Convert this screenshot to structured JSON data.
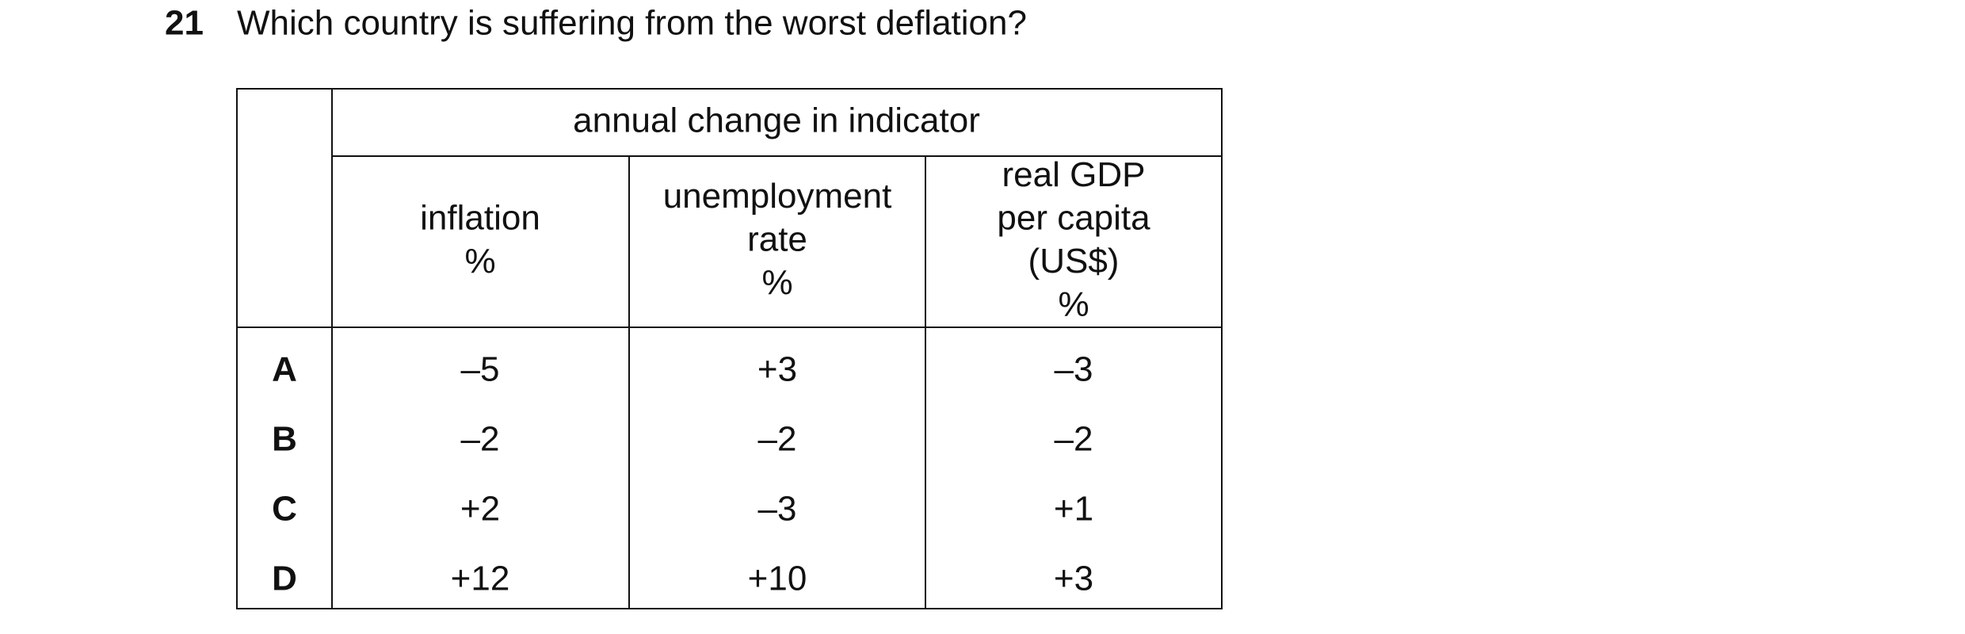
{
  "question": {
    "number": "21",
    "text": "Which country is suffering from the worst deflation?"
  },
  "table": {
    "group_header": "annual change in indicator",
    "columns": [
      [
        "inflation",
        "%"
      ],
      [
        "unemployment",
        "rate",
        "%"
      ],
      [
        "real GDP",
        "per capita",
        "(US$)",
        "%"
      ]
    ],
    "rows": [
      {
        "label": "A",
        "cells": [
          "–5",
          "+3",
          "–3"
        ]
      },
      {
        "label": "B",
        "cells": [
          "–2",
          "–2",
          "–2"
        ]
      },
      {
        "label": "C",
        "cells": [
          "+2",
          "–3",
          "+1"
        ]
      },
      {
        "label": "D",
        "cells": [
          "+12",
          "+10",
          "+3"
        ]
      }
    ]
  }
}
